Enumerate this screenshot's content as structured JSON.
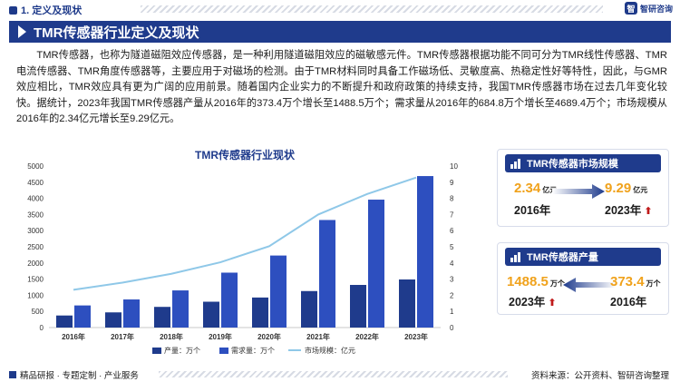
{
  "header": {
    "section_label": "1. 定义及现状",
    "logo_mark": "智",
    "logo_text": "智研咨询"
  },
  "title": "TMR传感器行业定义及现状",
  "paragraph": "TMR传感器，也称为隧道磁阻效应传感器，是一种利用隧道磁阻效应的磁敏感元件。TMR传感器根据功能不同可分为TMR线性传感器、TMR电流传感器、TMR角度传感器等，主要应用于对磁场的检测。由于TMR材料同时具备工作磁场低、灵敏度高、热稳定性好等特性，因此，与GMR效应相比，TMR效应具有更为广阔的应用前景。随着国内企业实力的不断提升和政府政策的持续支持，我国TMR传感器市场在过去几年变化较快。据统计，2023年我国TMR传感器产量从2016年的373.4万个增长至1488.5万个；需求量从2016年的684.8万个增长至4689.4万个；市场规模从2016年的2.34亿元增长至9.29亿元。",
  "colors": {
    "navy": "#1f3b8c",
    "bar_production": "#1f3b8c",
    "bar_demand": "#2d4fbf",
    "line_market": "#8fc8e8",
    "accent_orange": "#f0a21c",
    "up_red": "#c01a1a"
  },
  "chart_data": {
    "type": "bar",
    "title": "TMR传感器行业现状",
    "categories": [
      "2016年",
      "2017年",
      "2018年",
      "2019年",
      "2020年",
      "2021年",
      "2022年",
      "2023年"
    ],
    "y_left_ticks": [
      "0",
      "500",
      "1000",
      "1500",
      "2000",
      "2500",
      "3000",
      "3500",
      "4000",
      "4500",
      "5000"
    ],
    "y_right_ticks": [
      "0",
      "1",
      "2",
      "3",
      "4",
      "5",
      "6",
      "7",
      "8",
      "9",
      "10"
    ],
    "ylim_left": [
      0,
      5000
    ],
    "ylim_right": [
      0,
      10
    ],
    "series": [
      {
        "name": "产量：万个",
        "kind": "bar",
        "axis": "left",
        "values": [
          373.4,
          470,
          640,
          800,
          930,
          1130,
          1320,
          1488.5
        ]
      },
      {
        "name": "需求量：万个",
        "kind": "bar",
        "axis": "left",
        "values": [
          684.8,
          870,
          1150,
          1700,
          2230,
          3330,
          3960,
          4689.4
        ]
      },
      {
        "name": "市场规模：亿元",
        "kind": "line",
        "axis": "right",
        "values": [
          2.34,
          2.78,
          3.33,
          4.04,
          5.04,
          7.0,
          8.27,
          9.29
        ]
      }
    ],
    "legend_position": "bottom",
    "grid": false
  },
  "cards": {
    "market": {
      "title": "TMR传感器市场规模",
      "from_value": "2.34",
      "from_unit": "亿元",
      "from_year": "2016年",
      "to_value": "9.29",
      "to_unit": "亿元",
      "to_year": "2023年",
      "up_arrow": "⬆"
    },
    "production": {
      "title": "TMR传感器产量",
      "to_value": "1488.5",
      "to_unit": "万个",
      "to_year": "2023年",
      "from_value": "373.4",
      "from_unit": "万个",
      "from_year": "2016年",
      "up_arrow": "⬆"
    }
  },
  "footer": {
    "left": "精品研报 · 专题定制 · 产业服务",
    "source": "资料来源：公开资料、智研咨询整理"
  }
}
